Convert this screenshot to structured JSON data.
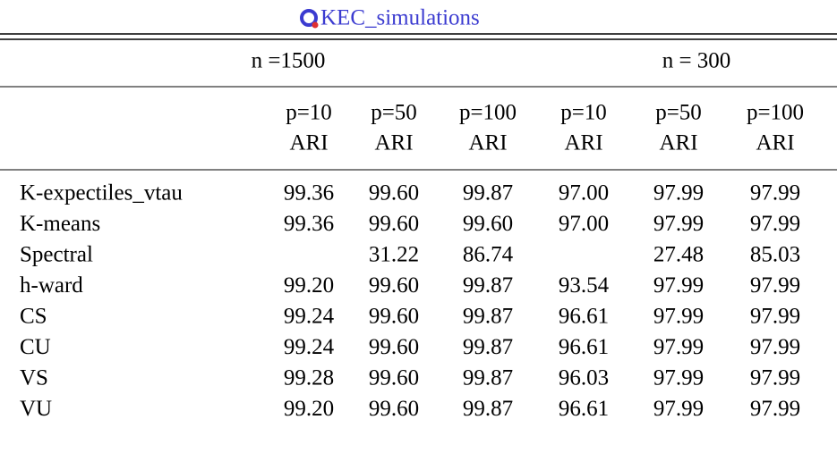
{
  "title": "KEC_simulations",
  "table": {
    "groups": [
      "n =1500",
      "n = 300"
    ],
    "columns": [
      [
        "p=10",
        "ARI"
      ],
      [
        "p=50",
        "ARI"
      ],
      [
        "p=100",
        "ARI"
      ],
      [
        "p=10",
        "ARI"
      ],
      [
        "p=50",
        "ARI"
      ],
      [
        "p=100",
        "ARI"
      ]
    ],
    "rows": [
      [
        "K-expectiles_vtau",
        "99.36",
        "99.60",
        "99.87",
        "97.00",
        "97.99",
        "97.99"
      ],
      [
        "K-means",
        "99.36",
        "99.60",
        "99.60",
        "97.00",
        "97.99",
        "97.99"
      ],
      [
        "Spectral",
        null,
        "31.22",
        "86.74",
        null,
        "27.48",
        "85.03"
      ],
      [
        "h-ward",
        "99.20",
        "99.60",
        "99.87",
        "93.54",
        "97.99",
        "97.99"
      ],
      [
        "CS",
        "99.24",
        "99.60",
        "99.87",
        "96.61",
        "97.99",
        "97.99"
      ],
      [
        "CU",
        "99.24",
        "99.60",
        "99.87",
        "96.61",
        "97.99",
        "97.99"
      ],
      [
        "VS",
        "99.28",
        "99.60",
        "99.87",
        "96.03",
        "97.99",
        "97.99"
      ],
      [
        "VU",
        "99.20",
        "99.60",
        "99.87",
        "96.61",
        "97.99",
        "97.99"
      ]
    ]
  }
}
